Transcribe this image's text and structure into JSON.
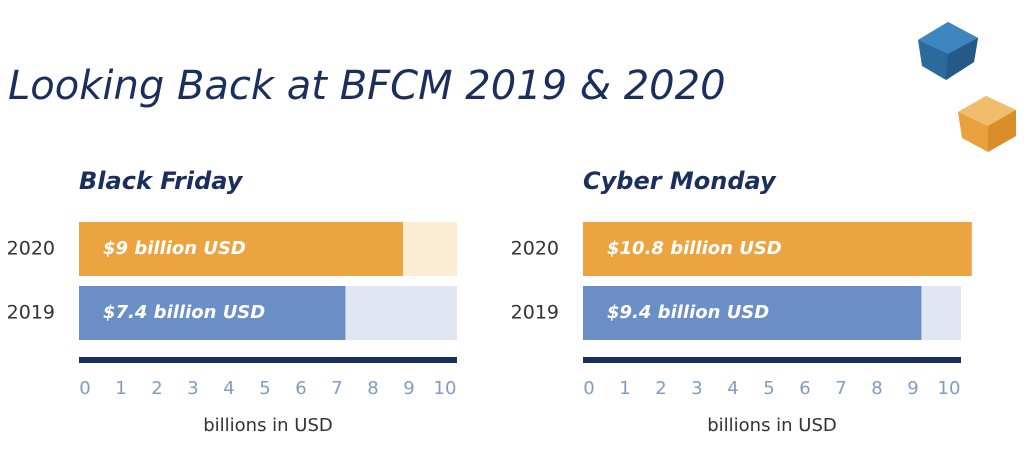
{
  "title": "Looking Back at BFCM 2019 & 2020",
  "chart_data": [
    {
      "type": "bar",
      "orientation": "horizontal",
      "title": "Black Friday",
      "categories": [
        "2020",
        "2019"
      ],
      "values": [
        9,
        7.4
      ],
      "value_labels": [
        "$9 billion USD",
        "$7.4 billion USD"
      ],
      "colors": [
        "#eca440",
        "#6a8fc7"
      ],
      "track_colors": [
        "#fcecd3",
        "#e1e7f2"
      ],
      "xlim": [
        0,
        10.5
      ],
      "xticks": [
        0,
        1,
        2,
        3,
        4,
        5,
        6,
        7,
        8,
        9,
        10
      ],
      "x_label": "billions in USD"
    },
    {
      "type": "bar",
      "orientation": "horizontal",
      "title": "Cyber Monday",
      "categories": [
        "2020",
        "2019"
      ],
      "values": [
        10.8,
        9.4
      ],
      "value_labels": [
        "$10.8 billion USD",
        "$9.4 billion USD"
      ],
      "colors": [
        "#eca440",
        "#6a8fc7"
      ],
      "track_colors": [
        "#fcecd3",
        "#e1e7f2"
      ],
      "xlim": [
        0,
        10.5
      ],
      "xticks": [
        0,
        1,
        2,
        3,
        4,
        5,
        6,
        7,
        8,
        9,
        10
      ],
      "x_label": "billions in USD"
    }
  ]
}
